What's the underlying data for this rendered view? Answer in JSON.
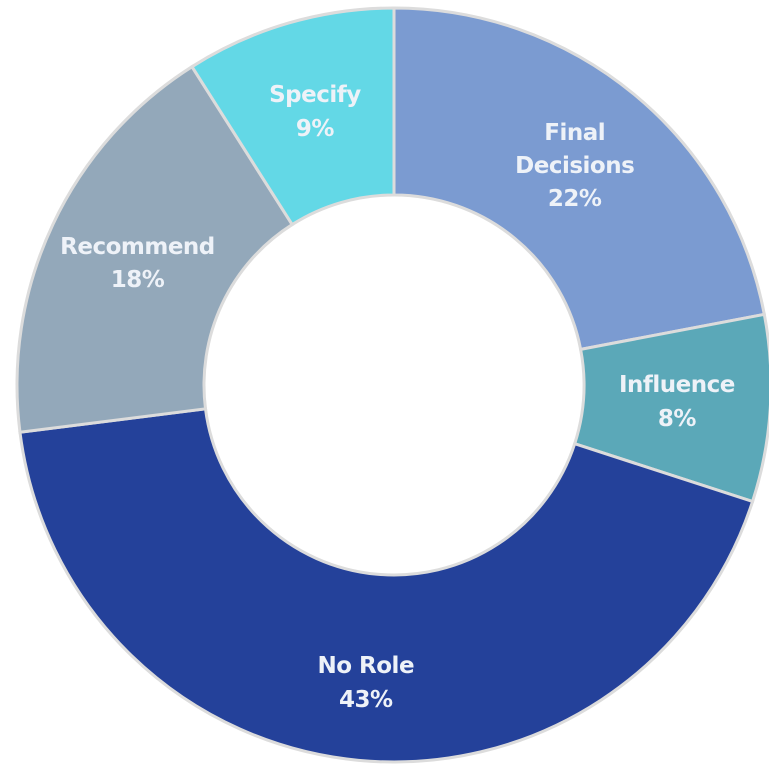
{
  "chart_data": {
    "type": "pie",
    "categories": [
      "Final Decisions",
      "Influence",
      "No Role",
      "Recommend",
      "Specify"
    ],
    "values": [
      22,
      8,
      43,
      18,
      9
    ],
    "value_labels": [
      "22%",
      "8%",
      "43%",
      "18%",
      "9%"
    ],
    "colors": [
      "#7b9bd1",
      "#5ba8b8",
      "#24419a",
      "#93a8ba",
      "#63d8e6"
    ],
    "donut": true
  }
}
